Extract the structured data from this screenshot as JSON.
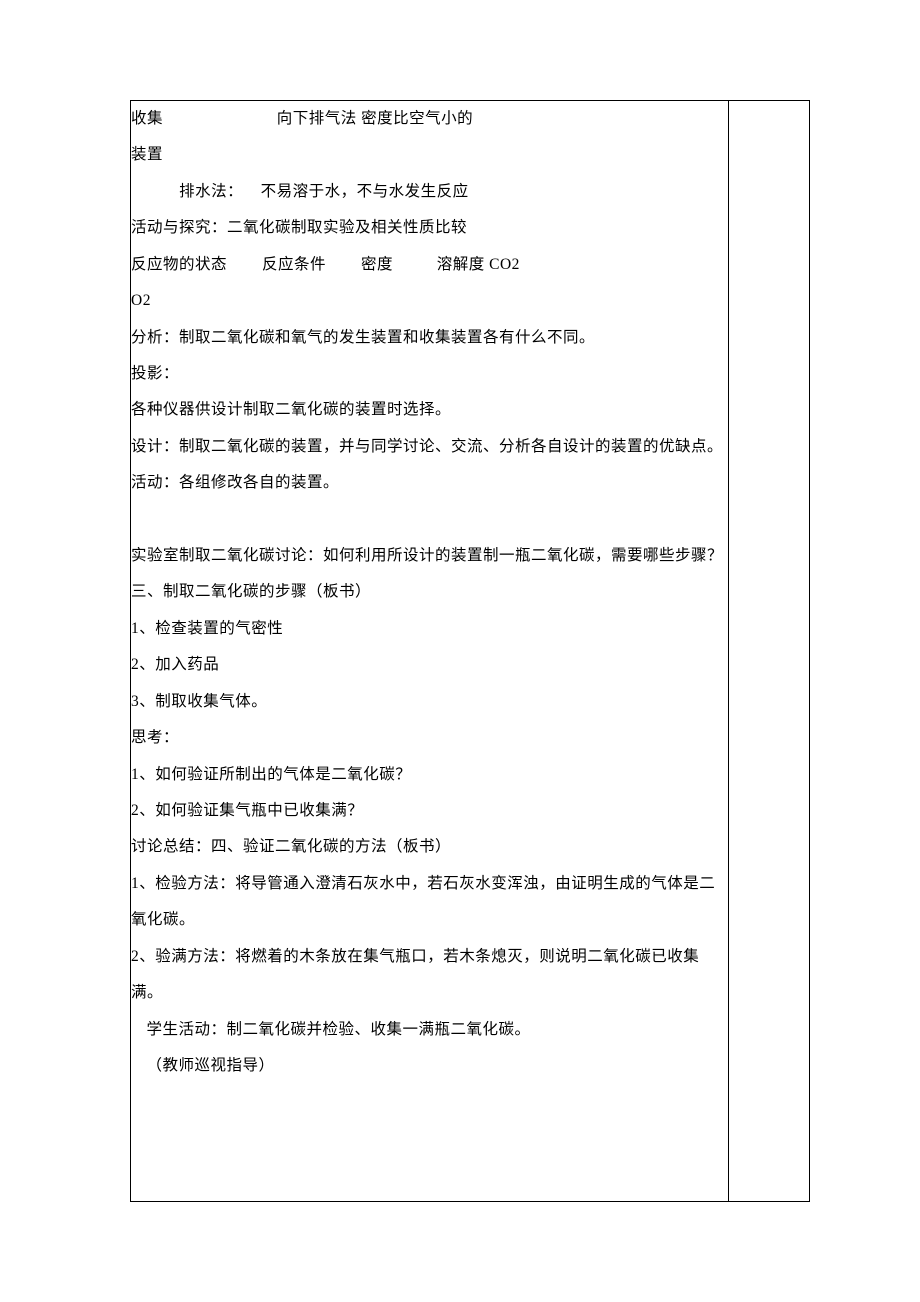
{
  "lines": {
    "l1": "收集                          向下排气法 密度比空气小的",
    "l2": "装置",
    "l3": "           排水法：    不易溶于水，不与水发生反应",
    "l4": "活动与探究：二氧化碳制取实验及相关性质比较",
    "l5": "反应物的状态        反应条件        密度          溶解度 CO2",
    "l6": "O2",
    "l7": "分析：制取二氧化碳和氧气的发生装置和收集装置各有什么不同。",
    "l8": "投影：",
    "l9": "各种仪器供设计制取二氧化碳的装置时选择。",
    "l10": "设计：制取二氧化碳的装置，并与同学讨论、交流、分析各自设计的装置的优缺点。",
    "l11": "活动：各组修改各自的装置。",
    "l12": "实验室制取二氧化碳讨论：如何利用所设计的装置制一瓶二氧化碳，需要哪些步骤？",
    "l13": "三、制取二氧化碳的步骤（板书）",
    "l14": "1、检查装置的气密性",
    "l15": "2、加入药品",
    "l16": "3、制取收集气体。",
    "l17": "思考：",
    "l18": "1、如何验证所制出的气体是二氧化碳？",
    "l19": "2、如何验证集气瓶中已收集满？",
    "l20": "讨论总结：四、验证二氧化碳的方法（板书）",
    "l21": "1、检验方法：将导管通入澄清石灰水中，若石灰水变浑浊，由证明生成的气体是二氧化碳。",
    "l22": "2、验满方法：将燃着的木条放在集气瓶口，若木条熄灭，则说明二氧化碳已收集满。",
    "l23": "学生活动：制二氧化碳并检验、收集一满瓶二氧化碳。",
    "l24": "（教师巡视指导）"
  }
}
